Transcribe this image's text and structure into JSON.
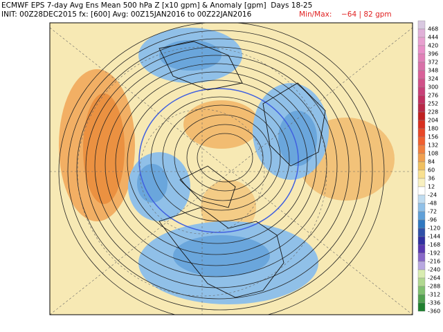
{
  "header": {
    "line1": "ECMWF EPS 7-day Avg Ens Mean 500 hPa Z [x10 gpm] & Anomaly [gpm]  Days 18-25",
    "line2": "INIT: 00Z28DEC2015 fx: [600] Avg: 00Z15JAN2016 to 00Z22JAN2016",
    "minmax_label": "Min/Max:",
    "minmax_value": "−64 | 82 gpm"
  },
  "colorbar": {
    "labels": [
      "468",
      "444",
      "420",
      "396",
      "372",
      "348",
      "324",
      "300",
      "276",
      "252",
      "228",
      "204",
      "180",
      "156",
      "132",
      "108",
      "84",
      "60",
      "36",
      "12",
      "-24",
      "-48",
      "-72",
      "-96",
      "-120",
      "-144",
      "-168",
      "-192",
      "-216",
      "-240",
      "-264",
      "-288",
      "-312",
      "-336",
      "-360"
    ]
  }
}
